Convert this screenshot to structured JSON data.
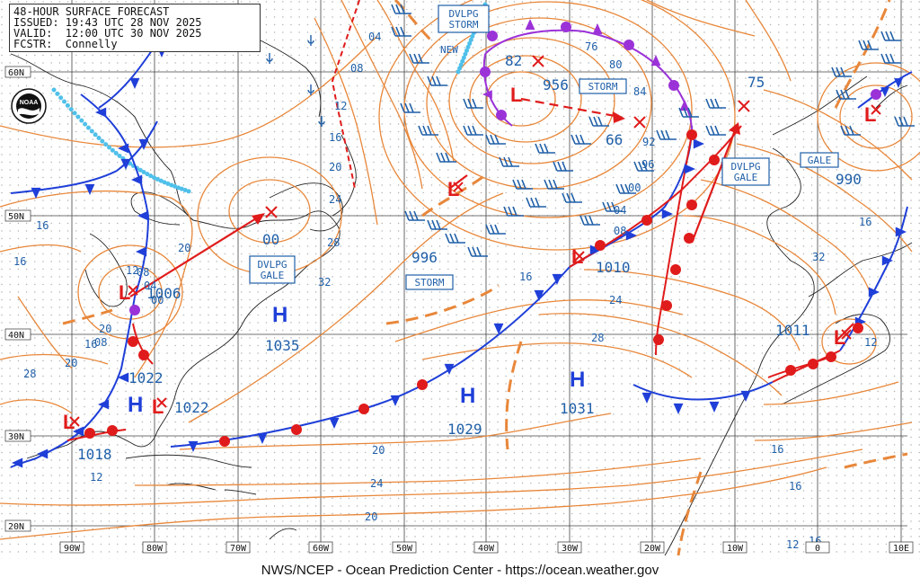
{
  "header": {
    "title": "48-HOUR SURFACE FORECAST",
    "issued": "ISSUED: 19:43 UTC 28 NOV 2025",
    "valid": "VALID:  12:00 UTC 30 NOV 2025",
    "forecaster": "FCSTR:  Connelly"
  },
  "footer": {
    "credit": "NWS/NCEP - Ocean Prediction Center - https://ocean.weather.gov"
  },
  "logo": {
    "text": "NOAA"
  },
  "colors": {
    "isobar": "#e8873a",
    "label": "#1f5fa8",
    "cold": "#1f3fd8",
    "warm": "#e01b1b",
    "occluded": "#9b32d8",
    "ice": "#4fc0ea",
    "windbarb": "#1f5fa8",
    "land": "#111111"
  },
  "lat_labels": [
    "60N",
    "50N",
    "40N",
    "30N",
    "20N"
  ],
  "lon_labels": [
    "90W",
    "80W",
    "70W",
    "60W",
    "50W",
    "40W",
    "30W",
    "20W",
    "10W",
    "0",
    "10E"
  ],
  "highs": [
    {
      "letter": "H",
      "pressure": "1035"
    },
    {
      "letter": "H",
      "pressure": "1029"
    },
    {
      "letter": "H",
      "pressure": "1031"
    },
    {
      "letter": "H",
      "pressure": "1022"
    }
  ],
  "lows": [
    {
      "letter": "L",
      "pressure": "956"
    },
    {
      "letter": "L",
      "pressure": "1006"
    },
    {
      "letter": "L",
      "pressure": "1010"
    },
    {
      "letter": "L",
      "pressure": "1022"
    },
    {
      "letter": "L",
      "pressure": "1018"
    },
    {
      "letter": "L",
      "pressure": "1011"
    },
    {
      "letter": "L",
      "pressure": "990"
    },
    {
      "letter": "L",
      "pressure": ""
    }
  ],
  "future_centers": [
    "82",
    "66",
    "75",
    "00"
  ],
  "boxed_labels": [
    "DVLPG\nSTORM",
    "STORM",
    "DVLPG\nGALE",
    "DVLPG\nGALE",
    "STORM",
    "GALE"
  ],
  "new_label": "NEW",
  "isobar_labels": [
    "04",
    "08",
    "12",
    "16",
    "20",
    "24",
    "28",
    "32",
    "76",
    "80",
    "84",
    "92",
    "96",
    "00",
    "04",
    "08",
    "16",
    "24",
    "28",
    "996",
    "20",
    "16",
    "12",
    "08",
    "04",
    "00",
    "16",
    "20",
    "12",
    "16",
    "08",
    "20",
    "28",
    "32",
    "20",
    "24",
    "20",
    "16",
    "16",
    "16",
    "12",
    "16",
    "12"
  ]
}
